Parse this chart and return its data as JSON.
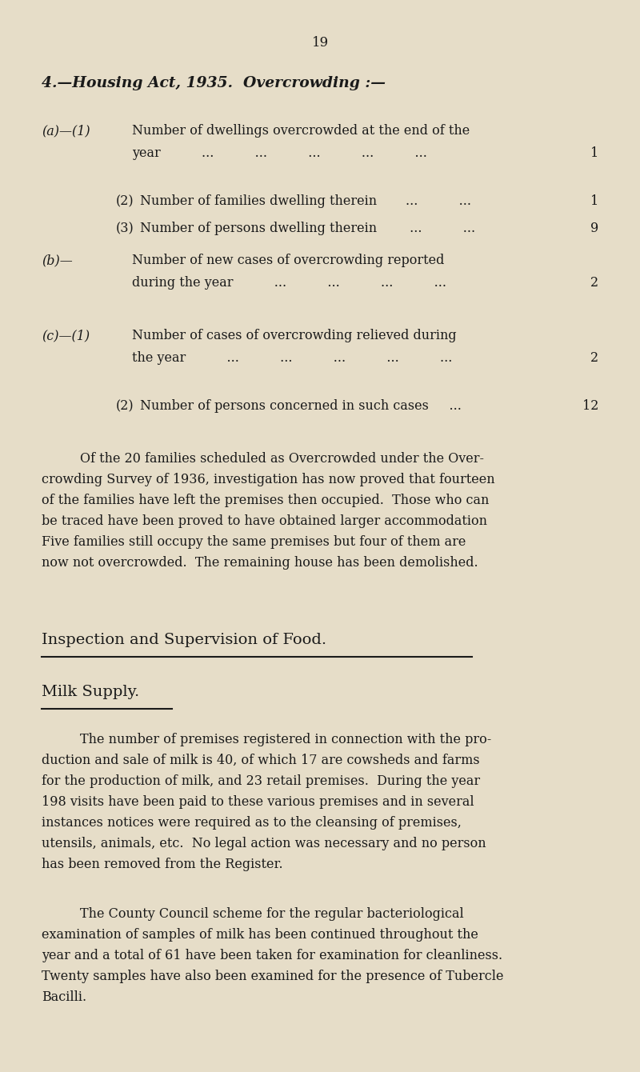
{
  "bg_color": "#e6ddc8",
  "text_color": "#1a1a1a",
  "page_number": "19",
  "section_heading": "4.—Housing Act, 1935.  Overcrowding :—",
  "paragraph1_lines": [
    "Of the 20 families scheduled as Overcrowded under the Over-",
    "crowding Survey of 1936, investigation has now proved that fourteen",
    "of the families have left the premises then occupied.  Those who can",
    "be traced have been proved to have obtained larger accommodation",
    "Five families still occupy the same premises but four of them are",
    "now not overcrowded.  The remaining house has been demolished."
  ],
  "section2_heading": "Inspection and Supervision of Food.",
  "section3_heading": "Milk Supply.",
  "paragraph2_lines": [
    "The number of premises registered in connection with the pro-",
    "duction and sale of milk is 40, of which 17 are cowsheds and farms",
    "for the production of milk, and 23 retail premises.  During the year",
    "198 visits have been paid to these various premises and in several",
    "instances notices were required as to the cleansing of premises,",
    "utensils, animals, etc.  No legal action was necessary and no person",
    "has been removed from the Register."
  ],
  "paragraph3_lines": [
    "The County Council scheme for the regular bacteriological",
    "examination of samples of milk has been continued throughout the",
    "year and a total of 61 have been taken for examination for cleanliness.",
    "Twenty samples have also been examined for the presence of Tubercle",
    "Bacilli."
  ]
}
